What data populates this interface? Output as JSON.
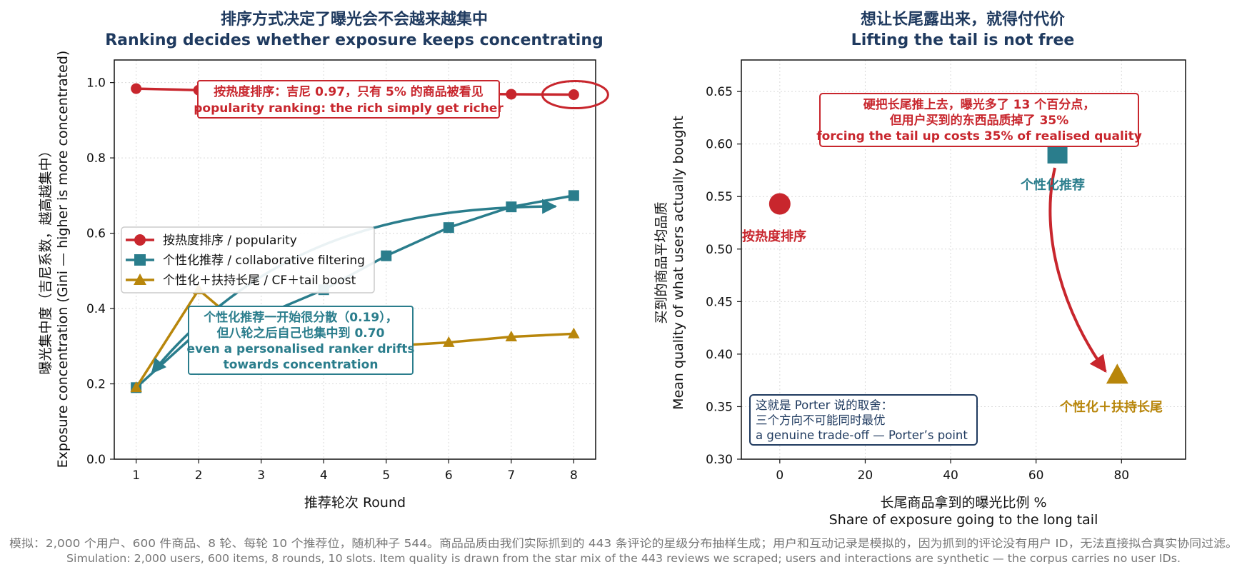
{
  "colors": {
    "popularity": "#c8262d",
    "cf": "#2a7d8c",
    "boost": "#b8860b",
    "title": "#1f3a5f",
    "grid": "#d9d9d9",
    "note_border": "#1f3a5f"
  },
  "chart_data": [
    {
      "type": "line",
      "title_zh": "排序方式决定了曝光会不会越来越集中",
      "title_en": "Ranking decides whether exposure keeps concentrating",
      "xlabel": "推荐轮次 Round",
      "ylabel_zh": "曝光集中度（吉尼系数，越高越集中）",
      "ylabel_en": "Exposure concentration (Gini — higher is more concentrated)",
      "xlim": [
        0.65,
        8.35
      ],
      "ylim": [
        0.0,
        1.06
      ],
      "x_ticks": [
        "1",
        "2",
        "3",
        "4",
        "5",
        "6",
        "7",
        "8"
      ],
      "y_ticks": [
        "0.0",
        "0.2",
        "0.4",
        "0.6",
        "0.8",
        "1.0"
      ],
      "grid": true,
      "legend_position": "center-left",
      "x": [
        1,
        2,
        3,
        4,
        5,
        6,
        7,
        8
      ],
      "series": [
        {
          "name": "按热度排序 / popularity",
          "marker": "circle",
          "values": [
            0.984,
            0.98,
            0.977,
            0.975,
            0.973,
            0.971,
            0.969,
            0.968
          ]
        },
        {
          "name": "个性化推荐 / collaborative filtering",
          "marker": "square",
          "values": [
            0.19,
            0.34,
            0.38,
            0.45,
            0.54,
            0.615,
            0.67,
            0.7
          ]
        },
        {
          "name": "个性化＋扶持长尾 / CF＋tail boost",
          "marker": "triangle",
          "values": [
            0.19,
            0.45,
            0.31,
            0.3,
            0.3,
            0.31,
            0.325,
            0.333
          ]
        }
      ],
      "annotations": [
        {
          "lines": [
            "按热度排序：吉尼 0.97，只有 5% 的商品被看见",
            "popularity ranking: the rich simply get richer"
          ],
          "series": 0
        },
        {
          "lines": [
            "个性化推荐一开始很分散（0.19），",
            "但八轮之后自己也集中到 0.70",
            "even a personalised ranker drifts",
            "towards concentration"
          ],
          "series": 1
        }
      ]
    },
    {
      "type": "scatter",
      "title_zh": "想让长尾露出来，就得付代价",
      "title_en": "Lifting the tail is not free",
      "xlabel_zh": "长尾商品拿到的曝光比例 %",
      "xlabel_en": "Share of exposure going to the long tail",
      "ylabel_zh": "买到的商品平均品质",
      "ylabel_en": "Mean quality of what users actually bought",
      "xlim": [
        -9,
        95
      ],
      "ylim": [
        0.3,
        0.68
      ],
      "x_ticks": [
        "0",
        "20",
        "40",
        "60",
        "80"
      ],
      "y_ticks": [
        "0.30",
        "0.35",
        "0.40",
        "0.45",
        "0.50",
        "0.55",
        "0.60",
        "0.65"
      ],
      "grid": true,
      "points": [
        {
          "label": "按热度排序",
          "x": 0,
          "y": 0.543,
          "marker": "circle"
        },
        {
          "label": "个性化推荐",
          "x": 65,
          "y": 0.591,
          "marker": "square"
        },
        {
          "label": "个性化＋扶持长尾",
          "x": 79,
          "y": 0.38,
          "marker": "triangle"
        }
      ],
      "annotations": [
        {
          "lines": [
            "硬把长尾推上去，曝光多了 13 个百分点，",
            "但用户买到的东西品质掉了 35%",
            "forcing the tail up costs 35% of realised quality"
          ]
        },
        {
          "lines": [
            "这就是 Porter 说的取舍：",
            "三个方向不可能同时最优",
            "a genuine trade-off — Porter’s point"
          ]
        }
      ]
    }
  ],
  "footer": [
    "模拟：2,000 个用户、600 件商品、8 轮、每轮 10 个推荐位，随机种子 544。商品品质由我们实际抓到的 443 条评论的星级分布抽样生成；用户和互动记录是模拟的，因为抓到的评论没有用户 ID，无法直接拟合真实协同过滤。",
    "Simulation: 2,000 users, 600 items, 8 rounds, 10 slots. Item quality is drawn from the star mix of the 443 reviews we scraped; users and interactions are synthetic — the corpus carries no user IDs."
  ]
}
